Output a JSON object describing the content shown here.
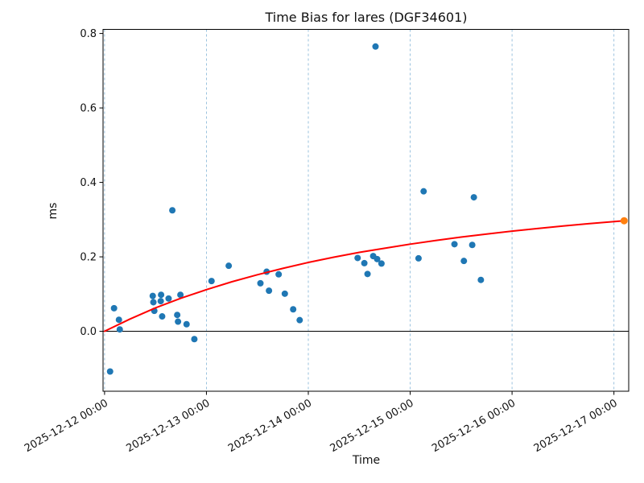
{
  "chart_data": {
    "type": "scatter",
    "title": "Time Bias for lares (DGF34601)",
    "xlabel": "Time",
    "ylabel": "ms",
    "day_zero": "2025-12-12",
    "x_ticks": [
      {
        "days": 0,
        "label": "2025-12-12 00:00"
      },
      {
        "days": 1,
        "label": "2025-12-13 00:00"
      },
      {
        "days": 2,
        "label": "2025-12-14 00:00"
      },
      {
        "days": 3,
        "label": "2025-12-15 00:00"
      },
      {
        "days": 4,
        "label": "2025-12-16 00:00"
      },
      {
        "days": 5,
        "label": "2025-12-17 00:00"
      }
    ],
    "y_ticks": [
      {
        "value": 0.0,
        "label": "0.0"
      },
      {
        "value": 0.2,
        "label": "0.2"
      },
      {
        "value": 0.4,
        "label": "0.4"
      },
      {
        "value": 0.6,
        "label": "0.6"
      },
      {
        "value": 0.8,
        "label": "0.8"
      }
    ],
    "xlim_days": [
      -0.015,
      5.145
    ],
    "ylim": [
      -0.161,
      0.811
    ],
    "grid": "vertical-dashed",
    "zero_line": true,
    "legend": "none",
    "colors": {
      "scatter": "#1f77b4",
      "prediction": "#ff7f0e",
      "fit_line": "#ff0000",
      "grid_line": "#8fbbda",
      "axis": "#000000",
      "text": "#111111"
    },
    "series": [
      {
        "name": "time-bias-measurements",
        "type": "scatter",
        "points": [
          {
            "time": "2025-12-12 01:18",
            "ms": -0.108
          },
          {
            "time": "2025-12-12 02:14",
            "ms": 0.062
          },
          {
            "time": "2025-12-12 03:23",
            "ms": 0.031
          },
          {
            "time": "2025-12-12 03:35",
            "ms": 0.005
          },
          {
            "time": "2025-12-12 11:21",
            "ms": 0.095
          },
          {
            "time": "2025-12-12 11:30",
            "ms": 0.078
          },
          {
            "time": "2025-12-12 11:43",
            "ms": 0.055
          },
          {
            "time": "2025-12-12 13:14",
            "ms": 0.081
          },
          {
            "time": "2025-12-12 13:19",
            "ms": 0.098
          },
          {
            "time": "2025-12-12 13:34",
            "ms": 0.04
          },
          {
            "time": "2025-12-12 15:05",
            "ms": 0.088
          },
          {
            "time": "2025-12-12 15:58",
            "ms": 0.325
          },
          {
            "time": "2025-12-12 17:07",
            "ms": 0.044
          },
          {
            "time": "2025-12-12 17:18",
            "ms": 0.026
          },
          {
            "time": "2025-12-12 17:52",
            "ms": 0.098
          },
          {
            "time": "2025-12-12 19:19",
            "ms": 0.019
          },
          {
            "time": "2025-12-12 21:09",
            "ms": -0.021
          },
          {
            "time": "2025-12-13 01:12",
            "ms": 0.135
          },
          {
            "time": "2025-12-13 05:15",
            "ms": 0.176
          },
          {
            "time": "2025-12-13 12:43",
            "ms": 0.129
          },
          {
            "time": "2025-12-13 14:11",
            "ms": 0.16
          },
          {
            "time": "2025-12-13 14:44",
            "ms": 0.109
          },
          {
            "time": "2025-12-13 17:01",
            "ms": 0.153
          },
          {
            "time": "2025-12-13 18:28",
            "ms": 0.101
          },
          {
            "time": "2025-12-13 20:26",
            "ms": 0.059
          },
          {
            "time": "2025-12-13 21:58",
            "ms": 0.03
          },
          {
            "time": "2025-12-14 11:37",
            "ms": 0.197
          },
          {
            "time": "2025-12-14 13:12",
            "ms": 0.183
          },
          {
            "time": "2025-12-14 13:57",
            "ms": 0.154
          },
          {
            "time": "2025-12-14 15:17",
            "ms": 0.202
          },
          {
            "time": "2025-12-14 15:50",
            "ms": 0.765
          },
          {
            "time": "2025-12-14 16:13",
            "ms": 0.194
          },
          {
            "time": "2025-12-14 17:14",
            "ms": 0.182
          },
          {
            "time": "2025-12-15 01:58",
            "ms": 0.196
          },
          {
            "time": "2025-12-15 03:10",
            "ms": 0.376
          },
          {
            "time": "2025-12-15 10:26",
            "ms": 0.234
          },
          {
            "time": "2025-12-15 12:39",
            "ms": 0.189
          },
          {
            "time": "2025-12-15 14:37",
            "ms": 0.232
          },
          {
            "time": "2025-12-15 15:00",
            "ms": 0.36
          },
          {
            "time": "2025-12-15 16:39",
            "ms": 0.138
          }
        ]
      },
      {
        "name": "fit-curve",
        "type": "line",
        "points": [
          {
            "t_days": 0.0,
            "ms": 0.0
          },
          {
            "t_days": 0.25,
            "ms": 0.033
          },
          {
            "t_days": 0.5,
            "ms": 0.063
          },
          {
            "t_days": 0.75,
            "ms": 0.089
          },
          {
            "t_days": 1.0,
            "ms": 0.112
          },
          {
            "t_days": 1.25,
            "ms": 0.133
          },
          {
            "t_days": 1.5,
            "ms": 0.152
          },
          {
            "t_days": 1.75,
            "ms": 0.169
          },
          {
            "t_days": 2.0,
            "ms": 0.185
          },
          {
            "t_days": 2.25,
            "ms": 0.199
          },
          {
            "t_days": 2.5,
            "ms": 0.212
          },
          {
            "t_days": 2.75,
            "ms": 0.223
          },
          {
            "t_days": 3.0,
            "ms": 0.234
          },
          {
            "t_days": 3.25,
            "ms": 0.244
          },
          {
            "t_days": 3.5,
            "ms": 0.253
          },
          {
            "t_days": 3.75,
            "ms": 0.261
          },
          {
            "t_days": 4.0,
            "ms": 0.269
          },
          {
            "t_days": 4.25,
            "ms": 0.276
          },
          {
            "t_days": 4.5,
            "ms": 0.283
          },
          {
            "t_days": 4.75,
            "ms": 0.289
          },
          {
            "t_days": 5.1,
            "ms": 0.297
          }
        ]
      },
      {
        "name": "predicted-bias",
        "type": "scatter",
        "points": [
          {
            "time": "2025-12-17 02:24",
            "ms": 0.297
          }
        ]
      }
    ]
  }
}
